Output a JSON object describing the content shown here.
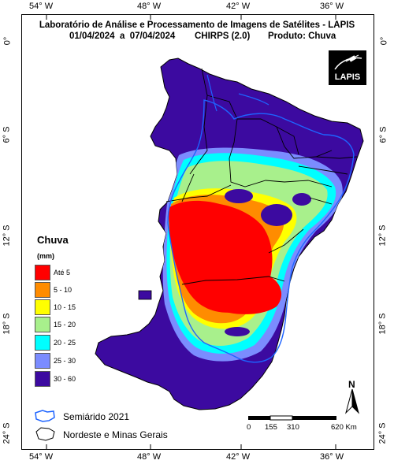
{
  "header": {
    "title": "Laboratório de Análise e Processamento de Imagens de Satélites - LAPIS",
    "period": "01/04/2024  a  07/04/2024",
    "product_source": "CHIRPS (2.0)",
    "product": "Produto: Chuva"
  },
  "logo": {
    "text": "LAPIS"
  },
  "axes": {
    "lon_labels": [
      "54° W",
      "48° W",
      "42° W",
      "36° W"
    ],
    "lat_labels": [
      "0°",
      "6° S",
      "12° S",
      "18° S",
      "24° S"
    ]
  },
  "legend": {
    "title": "Chuva",
    "unit": "(mm)",
    "items": [
      {
        "label": "Até 5",
        "color": "#ff0000"
      },
      {
        "label": "5 - 10",
        "color": "#ff8c00"
      },
      {
        "label": "10 - 15",
        "color": "#ffff00"
      },
      {
        "label": "15 - 20",
        "color": "#a8f08c"
      },
      {
        "label": "20 - 25",
        "color": "#00ffff"
      },
      {
        "label": "25 - 30",
        "color": "#7b8cff"
      },
      {
        "label": "30 - 60",
        "color": "#3c0aa0"
      }
    ]
  },
  "boundary_legend": {
    "semiarid": "Semiárido 2021",
    "region": "Nordeste e Minas Gerais"
  },
  "north_arrow": {
    "label": "N"
  },
  "scale_bar": {
    "labels": [
      "0",
      "155",
      "310",
      "620 Km"
    ]
  },
  "colors": {
    "ocean_bg": "#ffffff",
    "region_base": "#3c0aa0",
    "semiarid_outline": "#1e64ff",
    "state_borders": "#000000"
  }
}
